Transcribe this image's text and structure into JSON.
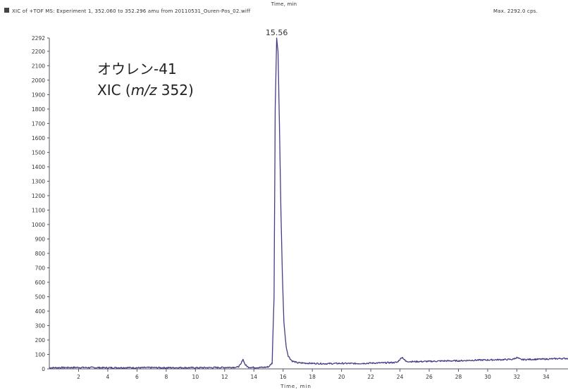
{
  "header": {
    "top_axis_label": "Time, min",
    "trace_description": "XIC of +TOF MS: Experiment 1, 352.060 to 352.296 amu from 20110531_Ouren-Pos_02.wiff",
    "max_label": "Max. 2292.0 cps.",
    "swatch_color": "#444444"
  },
  "annotation": {
    "line1": "オウレン-41",
    "line2_prefix": "XIC (",
    "line2_italic": "m/z",
    "line2_suffix": " 352)"
  },
  "chart_data": {
    "type": "line",
    "xlabel": "Time, min",
    "ylabel": "",
    "xlim": [
      0,
      35.5
    ],
    "ylim": [
      0,
      2292
    ],
    "x_ticks": [
      2,
      4,
      6,
      8,
      10,
      12,
      14,
      16,
      18,
      20,
      22,
      24,
      26,
      28,
      30,
      32,
      34
    ],
    "y_ticks": [
      0,
      100,
      200,
      300,
      400,
      500,
      600,
      700,
      800,
      900,
      1000,
      1100,
      1200,
      1300,
      1400,
      1500,
      1600,
      1700,
      1800,
      1900,
      2000,
      2100,
      2200,
      2292
    ],
    "grid": false,
    "color": "#4b3a86",
    "peak_annotation": {
      "x": 15.56,
      "y": 2292,
      "label": "15.56"
    },
    "series": [
      {
        "points": [
          [
            0,
            8
          ],
          [
            1,
            9
          ],
          [
            2,
            10
          ],
          [
            3,
            9
          ],
          [
            4,
            8
          ],
          [
            5,
            9
          ],
          [
            6,
            8
          ],
          [
            7,
            9
          ],
          [
            8,
            8
          ],
          [
            9,
            9
          ],
          [
            10,
            8
          ],
          [
            11,
            9
          ],
          [
            12,
            10
          ],
          [
            12.9,
            12
          ],
          [
            13.1,
            30
          ],
          [
            13.25,
            68
          ],
          [
            13.4,
            30
          ],
          [
            13.6,
            12
          ],
          [
            14,
            10
          ],
          [
            14.6,
            10
          ],
          [
            15.0,
            14
          ],
          [
            15.25,
            40
          ],
          [
            15.38,
            500
          ],
          [
            15.46,
            1800
          ],
          [
            15.56,
            2292
          ],
          [
            15.65,
            2200
          ],
          [
            15.75,
            1700
          ],
          [
            15.85,
            1100
          ],
          [
            15.95,
            650
          ],
          [
            16.05,
            330
          ],
          [
            16.2,
            160
          ],
          [
            16.35,
            90
          ],
          [
            16.6,
            55
          ],
          [
            17,
            42
          ],
          [
            18,
            38
          ],
          [
            19,
            36
          ],
          [
            20,
            38
          ],
          [
            21,
            37
          ],
          [
            22,
            40
          ],
          [
            23,
            42
          ],
          [
            23.8,
            45
          ],
          [
            24.15,
            82
          ],
          [
            24.4,
            52
          ],
          [
            25,
            50
          ],
          [
            26,
            52
          ],
          [
            27,
            55
          ],
          [
            28,
            56
          ],
          [
            29,
            60
          ],
          [
            30,
            62
          ],
          [
            31,
            64
          ],
          [
            31.7,
            66
          ],
          [
            32,
            78
          ],
          [
            32.3,
            64
          ],
          [
            33,
            66
          ],
          [
            34,
            68
          ],
          [
            34.6,
            70
          ],
          [
            35,
            72
          ],
          [
            35.5,
            72
          ]
        ]
      }
    ]
  }
}
